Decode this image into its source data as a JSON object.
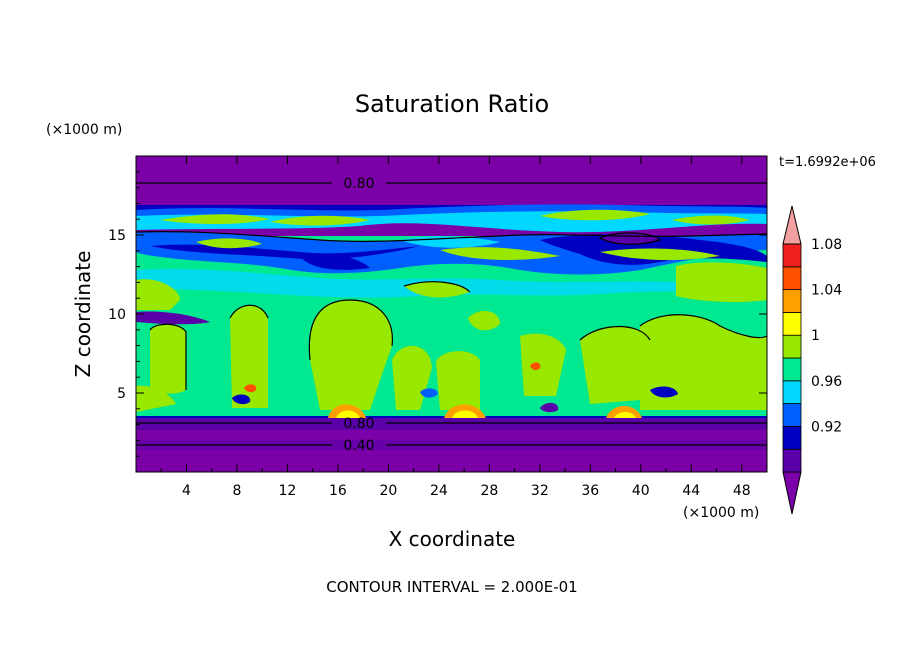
{
  "chart_data": {
    "type": "heatmap",
    "title": "Saturation Ratio",
    "xlabel": "X coordinate",
    "ylabel": "Z coordinate",
    "x_unit": "(×1000 m)",
    "y_unit": "(×1000 m)",
    "time_label": "t=1.6992e+06",
    "footer": "CONTOUR INTERVAL = 2.000E-01",
    "xlim": [
      0,
      50
    ],
    "ylim": [
      0,
      20
    ],
    "x_ticks": [
      4,
      8,
      12,
      16,
      20,
      24,
      28,
      32,
      36,
      40,
      44,
      48
    ],
    "y_ticks": [
      5,
      10,
      15
    ],
    "contour_labels": [
      {
        "text": "0.80",
        "x": 17,
        "z": 18.3
      },
      {
        "text": "0.80",
        "x": 17,
        "z": 2.8
      },
      {
        "text": "0.40",
        "x": 17,
        "z": 1.6
      }
    ],
    "colorbar": {
      "levels": [
        "0.92",
        "0.96",
        "1",
        "1.04",
        "1.08"
      ],
      "bins": [
        {
          "range": "<0.90",
          "color": "#7c00a8"
        },
        {
          "range": "0.90-0.92",
          "color": "#5a00a8"
        },
        {
          "range": "0.92-0.94",
          "color": "#0000c0"
        },
        {
          "range": "0.94-0.96",
          "color": "#0060ff"
        },
        {
          "range": "0.96-0.98",
          "color": "#00d8ff"
        },
        {
          "range": "0.98-1.00",
          "color": "#00e890"
        },
        {
          "range": "1.00-1.02",
          "color": "#98e800"
        },
        {
          "range": "1.02-1.04",
          "color": "#ffff00"
        },
        {
          "range": "1.04-1.06",
          "color": "#ffa000"
        },
        {
          "range": "1.06-1.08",
          "color": "#ff5000"
        },
        {
          "range": "1.08-1.10",
          "color": "#f02020"
        },
        {
          "range": ">1.10",
          "color": "#f4a0a0"
        }
      ]
    }
  }
}
